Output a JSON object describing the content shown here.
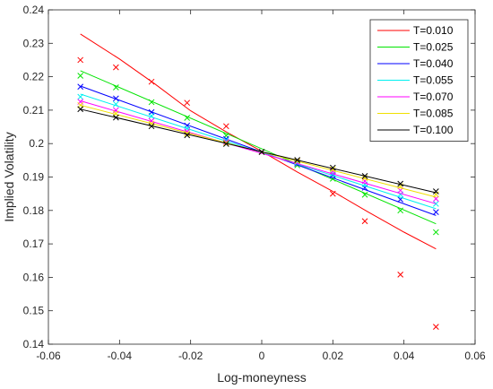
{
  "chart_data": {
    "type": "line",
    "xlabel": "Log-moneyness",
    "ylabel": "Implied Volatility",
    "xlim": [
      -0.06,
      0.06
    ],
    "ylim": [
      0.14,
      0.24
    ],
    "xticks": [
      -0.06,
      -0.04,
      -0.02,
      0,
      0.02,
      0.04,
      0.06
    ],
    "yticks": [
      0.14,
      0.15,
      0.16,
      0.17,
      0.18,
      0.19,
      0.2,
      0.21,
      0.22,
      0.23,
      0.24
    ],
    "xtick_labels": [
      "-0.06",
      "-0.04",
      "-0.02",
      "0",
      "0.02",
      "0.04",
      "0.06"
    ],
    "ytick_labels": [
      "0.14",
      "0.15",
      "0.16",
      "0.17",
      "0.18",
      "0.19",
      "0.2",
      "0.21",
      "0.22",
      "0.23",
      "0.24"
    ],
    "grid": false,
    "legend_position": "top-right",
    "marker_x": [
      -0.051,
      -0.041,
      -0.031,
      -0.021,
      -0.01,
      0,
      0.01,
      0.02,
      0.029,
      0.039,
      0.049
    ],
    "series": [
      {
        "name": "T=0.010",
        "color": "#ff0000",
        "line_x": [
          -0.051,
          -0.04,
          -0.03,
          -0.02,
          -0.01,
          0,
          0.01,
          0.02,
          0.03,
          0.04,
          0.049
        ],
        "line_y": [
          0.2328,
          0.2253,
          0.2178,
          0.2098,
          0.2035,
          0.1977,
          0.1915,
          0.1857,
          0.1795,
          0.1735,
          0.1685
        ],
        "marker_y": [
          0.225,
          0.2228,
          0.2185,
          0.2122,
          0.2052,
          0.1975,
          0.194,
          0.185,
          0.1768,
          0.1608,
          0.1452
        ]
      },
      {
        "name": "T=0.025",
        "color": "#00e400",
        "line_x": [
          -0.051,
          0.049
        ],
        "line_y": [
          0.2218,
          0.176
        ],
        "marker_y": [
          0.2203,
          0.2168,
          0.2124,
          0.2077,
          0.2024,
          0.1975,
          0.1935,
          0.1895,
          0.1847,
          0.18,
          0.1735
        ]
      },
      {
        "name": "T=0.040",
        "color": "#0000ff",
        "line_x": [
          -0.051,
          0.049
        ],
        "line_y": [
          0.2172,
          0.1785
        ],
        "marker_y": [
          0.217,
          0.2135,
          0.2094,
          0.2054,
          0.2014,
          0.1975,
          0.194,
          0.1905,
          0.1868,
          0.1833,
          0.1795
        ]
      },
      {
        "name": "T=0.055",
        "color": "#00f0f0",
        "line_x": [
          -0.051,
          0.049
        ],
        "line_y": [
          0.2148,
          0.1805
        ],
        "marker_y": [
          0.214,
          0.2118,
          0.2083,
          0.2045,
          0.201,
          0.1975,
          0.1943,
          0.191,
          0.1878,
          0.1848,
          0.182
        ]
      },
      {
        "name": "T=0.070",
        "color": "#ff00ff",
        "line_x": [
          -0.051,
          0.049
        ],
        "line_y": [
          0.2128,
          0.182
        ],
        "marker_y": [
          0.2125,
          0.21,
          0.2068,
          0.2036,
          0.2005,
          0.1975,
          0.1947,
          0.1917,
          0.1888,
          0.186,
          0.1835
        ]
      },
      {
        "name": "T=0.085",
        "color": "#f0e000",
        "line_x": [
          -0.051,
          0.049
        ],
        "line_y": [
          0.2115,
          0.184
        ],
        "marker_y": [
          0.2115,
          0.209,
          0.206,
          0.203,
          0.2002,
          0.1975,
          0.1948,
          0.1923,
          0.1897,
          0.1873,
          0.1848
        ]
      },
      {
        "name": "T=0.100",
        "color": "#000000",
        "line_x": [
          -0.051,
          0.049
        ],
        "line_y": [
          0.2103,
          0.1853
        ],
        "marker_y": [
          0.2103,
          0.2078,
          0.2052,
          0.2025,
          0.1999,
          0.1975,
          0.1951,
          0.1928,
          0.1903,
          0.188,
          0.1857
        ]
      }
    ]
  }
}
